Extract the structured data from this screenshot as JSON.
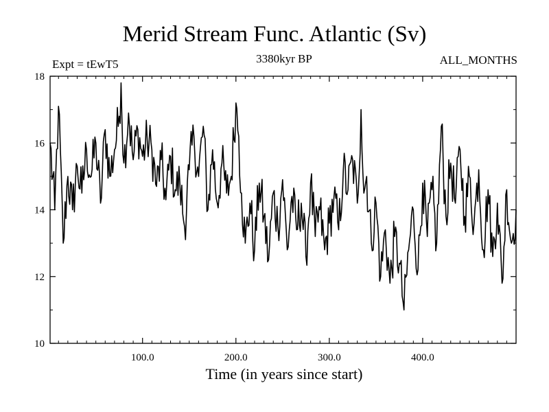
{
  "chart_data": {
    "type": "line",
    "title": "Merid Stream Func. Atlantic (Sv)",
    "subtitle": "3380kyr BP",
    "experiment_label": "Expt = tEwT5",
    "period_label": "ALL_MONTHS",
    "xlabel": "Time (in years since start)",
    "ylabel": "",
    "xlim": [
      1,
      500
    ],
    "ylim": [
      10,
      18
    ],
    "xticks": [
      100,
      200,
      300,
      400
    ],
    "xtick_labels": [
      "100.0",
      "200.0",
      "300.0",
      "400.0"
    ],
    "yticks": [
      10,
      12,
      14,
      16,
      18
    ],
    "ytick_labels": [
      "10",
      "12",
      "14",
      "16",
      "18"
    ],
    "grid": false,
    "series": [
      {
        "name": "Merid Stream Func. Atlantic",
        "x": [
          1,
          6,
          10,
          15,
          20,
          25,
          30,
          35,
          40,
          45,
          50,
          55,
          60,
          65,
          70,
          75,
          77,
          80,
          85,
          90,
          95,
          100,
          105,
          110,
          115,
          120,
          125,
          130,
          135,
          140,
          145,
          150,
          155,
          160,
          165,
          170,
          175,
          180,
          185,
          190,
          195,
          200,
          203,
          206,
          210,
          215,
          220,
          225,
          230,
          235,
          240,
          245,
          250,
          255,
          260,
          265,
          270,
          275,
          280,
          285,
          290,
          295,
          300,
          305,
          310,
          315,
          320,
          325,
          330,
          334,
          337,
          340,
          345,
          350,
          355,
          360,
          365,
          370,
          375,
          380,
          385,
          390,
          395,
          400,
          405,
          410,
          415,
          420,
          425,
          430,
          435,
          440,
          445,
          450,
          455,
          460,
          465,
          470,
          475,
          480,
          485,
          490,
          495,
          500
        ],
        "values": [
          16.0,
          14.0,
          17.1,
          13.0,
          15.0,
          14.0,
          15.3,
          14.5,
          15.8,
          15.0,
          16.0,
          14.2,
          16.4,
          15.0,
          15.8,
          16.8,
          17.8,
          15.4,
          16.9,
          15.5,
          16.4,
          15.6,
          16.1,
          15.8,
          14.7,
          15.5,
          14.3,
          15.6,
          14.6,
          14.8,
          13.5,
          15.2,
          16.2,
          15.0,
          16.5,
          14.0,
          15.8,
          14.2,
          15.4,
          14.5,
          15.0,
          17.2,
          16.2,
          14.5,
          13.0,
          14.2,
          12.8,
          14.8,
          13.8,
          12.5,
          14.5,
          13.5,
          14.9,
          12.8,
          14.4,
          13.4,
          14.2,
          12.6,
          14.8,
          13.2,
          14.0,
          12.8,
          13.6,
          14.4,
          13.4,
          15.2,
          14.6,
          15.5,
          14.2,
          17.0,
          14.5,
          15.0,
          13.0,
          14.2,
          12.0,
          13.4,
          11.8,
          13.2,
          12.4,
          11.0,
          12.8,
          14.0,
          12.2,
          14.8,
          13.2,
          14.6,
          13.0,
          16.5,
          13.8,
          15.4,
          14.2,
          15.8,
          13.8,
          15.0,
          13.6,
          15.2,
          12.8,
          14.6,
          12.6,
          14.2,
          11.8,
          14.6,
          13.0,
          14.0
        ]
      }
    ]
  }
}
